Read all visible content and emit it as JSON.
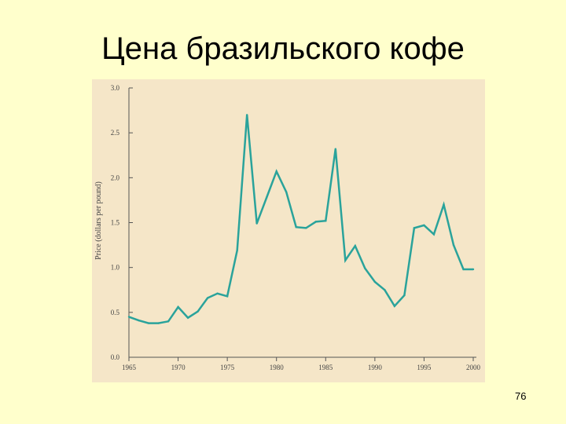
{
  "slide": {
    "title": "Цена бразильского кофе",
    "page_number": "76"
  },
  "chart_data": {
    "type": "line",
    "title": "",
    "xlabel": "",
    "ylabel": "Price (dollars per pound)",
    "xlim": [
      1965,
      2000
    ],
    "ylim": [
      0,
      3.0
    ],
    "x_ticks": [
      "1965",
      "1970",
      "1975",
      "1980",
      "1985",
      "1990",
      "1995",
      "2000"
    ],
    "y_ticks": [
      "0.0",
      "0.5",
      "1.0",
      "1.5",
      "2.0",
      "2.5",
      "3.0"
    ],
    "grid": false,
    "line_color": "#2aa39b",
    "background_color": "#f5e6c8",
    "series": [
      {
        "x": [
          1965,
          1966,
          1967,
          1968,
          1969,
          1970,
          1971,
          1972,
          1973,
          1974,
          1975,
          1976,
          1977,
          1978,
          1979,
          1980,
          1981,
          1982,
          1983,
          1984,
          1985,
          1986,
          1987,
          1988,
          1989,
          1990,
          1991,
          1992,
          1993,
          1994,
          1995,
          1996,
          1997,
          1998,
          1999,
          2000
        ],
        "values": [
          0.45,
          0.41,
          0.38,
          0.38,
          0.4,
          0.56,
          0.44,
          0.51,
          0.66,
          0.71,
          0.68,
          1.19,
          2.7,
          1.49,
          1.78,
          2.07,
          1.84,
          1.45,
          1.44,
          1.51,
          1.52,
          2.32,
          1.08,
          1.24,
          0.99,
          0.84,
          0.75,
          0.57,
          0.69,
          1.44,
          1.47,
          1.37,
          1.7,
          1.25,
          0.98,
          0.98
        ]
      }
    ]
  }
}
